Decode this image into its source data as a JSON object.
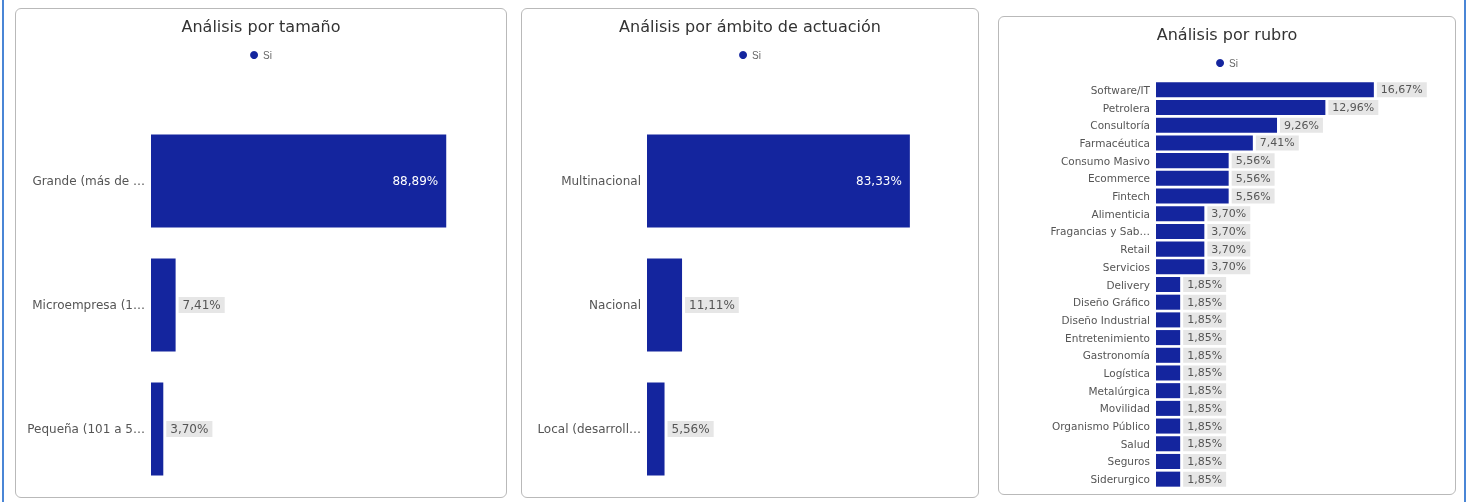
{
  "chart_data": [
    {
      "type": "bar",
      "orientation": "horizontal",
      "title": "Análisis por tamaño",
      "legend": "top",
      "tick_labels": "y",
      "grid": false,
      "categories": [
        "Grande (más de …",
        "Microempresa (1…",
        "Pequeña (101 a 5…"
      ],
      "series": [
        {
          "name": "Si",
          "color": "#14259e",
          "values": [
            88.89,
            7.41,
            3.7
          ],
          "value_labels": [
            "88,89%",
            "7,41%",
            "3,70%"
          ]
        }
      ]
    },
    {
      "type": "bar",
      "orientation": "horizontal",
      "title": "Análisis por ámbito de actuación",
      "legend": "top",
      "tick_labels": "y",
      "grid": false,
      "categories": [
        "Multinacional",
        "Nacional",
        "Local (desarroll…"
      ],
      "series": [
        {
          "name": "Si",
          "color": "#14259e",
          "values": [
            83.33,
            11.11,
            5.56
          ],
          "value_labels": [
            "83,33%",
            "11,11%",
            "5,56%"
          ]
        }
      ]
    },
    {
      "type": "bar",
      "orientation": "horizontal",
      "title": "Análisis por rubro",
      "legend": "top",
      "tick_labels": "y",
      "grid": false,
      "categories": [
        "Software/IT",
        "Petrolera",
        "Consultoría",
        "Farmacéutica",
        "Consumo Masivo",
        "Ecommerce",
        "Fintech",
        "Alimenticia",
        "Fragancias y Sab…",
        "Retail",
        "Servicios",
        "Delivery",
        "Diseño Gráfico",
        "Diseño Industrial",
        "Entretenimiento",
        "Gastronomía",
        "Logística",
        "Metalúrgica",
        "Movilidad",
        "Organismo Público",
        "Salud",
        "Seguros",
        "Siderurgico"
      ],
      "series": [
        {
          "name": "Si",
          "color": "#14259e",
          "values": [
            16.67,
            12.96,
            9.26,
            7.41,
            5.56,
            5.56,
            5.56,
            3.7,
            3.7,
            3.7,
            3.7,
            1.85,
            1.85,
            1.85,
            1.85,
            1.85,
            1.85,
            1.85,
            1.85,
            1.85,
            1.85,
            1.85,
            1.85
          ],
          "value_labels": [
            "16,67%",
            "12,96%",
            "9,26%",
            "7,41%",
            "5,56%",
            "5,56%",
            "5,56%",
            "3,70%",
            "3,70%",
            "3,70%",
            "3,70%",
            "1,85%",
            "1,85%",
            "1,85%",
            "1,85%",
            "1,85%",
            "1,85%",
            "1,85%",
            "1,85%",
            "1,85%",
            "1,85%",
            "1,85%",
            "1,85%"
          ]
        }
      ]
    }
  ]
}
